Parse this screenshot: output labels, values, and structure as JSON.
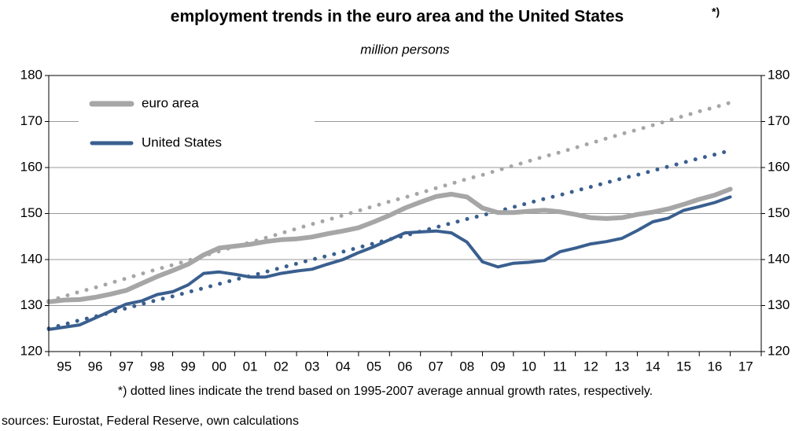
{
  "chart_data": {
    "type": "line",
    "title": "employment trends in the euro area and the United States",
    "title_mark": "*)",
    "subtitle": "million persons",
    "footnote": "*) dotted lines indicate the trend based on 1995-2007 average annual growth rates, respectively.",
    "source": "sources: Eurostat, Federal Reserve, own calculations",
    "categories": [
      "95",
      null,
      "96",
      null,
      "97",
      null,
      "98",
      null,
      "99",
      null,
      "00",
      null,
      "01",
      null,
      "02",
      null,
      "03",
      null,
      "04",
      null,
      "05",
      null,
      "06",
      null,
      "07",
      null,
      "08",
      null,
      "09",
      null,
      "10",
      null,
      "11",
      null,
      "12",
      null,
      "13",
      null,
      "14",
      null,
      "15",
      null,
      "16",
      null,
      "17"
    ],
    "series": [
      {
        "name": "euro area",
        "color": "#a6a6a6",
        "style": "solid",
        "values": [
          130.8,
          131.2,
          131.3,
          131.8,
          132.5,
          133.3,
          134.8,
          136.3,
          137.6,
          139,
          141,
          142.5,
          142.9,
          143.3,
          143.9,
          144.3,
          144.5,
          144.9,
          145.6,
          146.2,
          146.9,
          148.2,
          149.6,
          151.2,
          152.5,
          153.7,
          154.2,
          153.6,
          151.2,
          150.2,
          150.2,
          150.5,
          150.7,
          150.4,
          149.8,
          149.1,
          148.9,
          149.1,
          149.8,
          150.3,
          151,
          152,
          153.1,
          154,
          155.3
        ]
      },
      {
        "name": "United States",
        "color": "#3a5f8f",
        "style": "solid",
        "values": [
          124.8,
          125.3,
          125.8,
          127.3,
          128.8,
          130.3,
          131,
          132.4,
          133,
          134.5,
          137,
          137.3,
          136.8,
          136.2,
          136.2,
          137,
          137.5,
          137.9,
          139,
          140,
          141.5,
          142.8,
          144.3,
          145.8,
          146,
          146.2,
          145.8,
          143.8,
          139.5,
          138.4,
          139.2,
          139.4,
          139.8,
          141.7,
          142.5,
          143.4,
          143.9,
          144.6,
          146.3,
          148.2,
          149,
          150.7,
          151.5,
          152.4,
          153.6
        ]
      },
      {
        "color": "#a6a6a6",
        "style": "dotted",
        "values": [
          131.0,
          132.0,
          133.0,
          133.9,
          134.9,
          135.9,
          136.9,
          137.9,
          138.8,
          139.8,
          140.8,
          141.8,
          142.8,
          143.7,
          144.7,
          145.7,
          146.7,
          147.7,
          148.6,
          149.6,
          150.6,
          151.6,
          152.6,
          153.5,
          154.5,
          155.5,
          156.5,
          157.5,
          158.4,
          159.4,
          160.4,
          161.4,
          162.4,
          163.3,
          164.3,
          165.3,
          166.3,
          167.3,
          168.2,
          169.2,
          170.2,
          171.2,
          172.2,
          173.1,
          174.1
        ]
      },
      {
        "color": "#3a5f8f",
        "style": "dotted",
        "values": [
          125.0,
          125.9,
          126.8,
          127.6,
          128.5,
          129.4,
          130.3,
          131.2,
          132.0,
          132.9,
          133.8,
          134.7,
          135.6,
          136.4,
          137.3,
          138.2,
          139.1,
          140.0,
          140.8,
          141.7,
          142.6,
          143.5,
          144.4,
          145.2,
          146.1,
          147.0,
          147.9,
          148.8,
          149.6,
          150.5,
          151.4,
          152.3,
          153.2,
          154.0,
          154.9,
          155.8,
          156.7,
          157.6,
          158.4,
          159.3,
          160.2,
          161.1,
          162.0,
          162.8,
          163.7
        ]
      }
    ],
    "ylim": [
      120,
      180
    ],
    "yticks": [
      120,
      130,
      140,
      150,
      160,
      170,
      180
    ],
    "y2lim": [
      120,
      180
    ],
    "y2ticks": [
      120,
      130,
      140,
      150,
      160,
      170,
      180
    ],
    "grid": true,
    "legend": "upper left"
  }
}
